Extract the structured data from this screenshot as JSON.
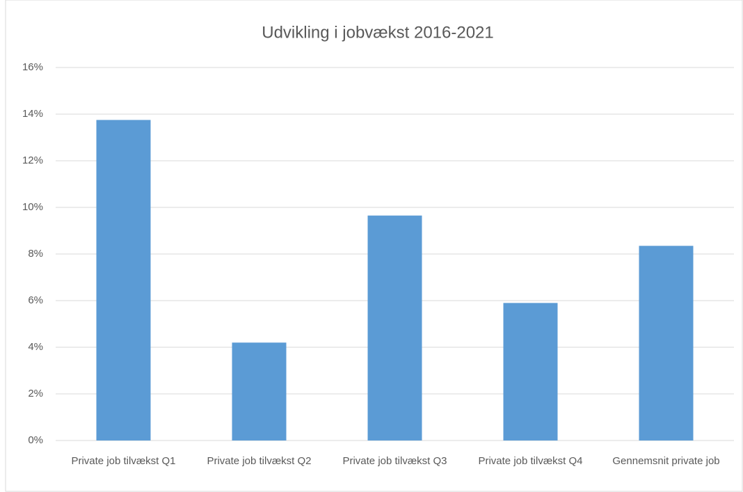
{
  "chart_data": {
    "type": "bar",
    "title": "Udvikling i jobvækst 2016-2021",
    "categories": [
      "Private job tilvækst Q1",
      "Private job tilvækst Q2",
      "Private job tilvækst Q3",
      "Private job tilvækst Q4",
      "Gennemsnit private job"
    ],
    "values": [
      13.75,
      4.2,
      9.65,
      5.9,
      8.35
    ],
    "color": "#5b9bd5",
    "ylim": [
      0,
      16
    ],
    "yticks": [
      {
        "value": 0,
        "label": "0%"
      },
      {
        "value": 2,
        "label": "2%"
      },
      {
        "value": 4,
        "label": "4%"
      },
      {
        "value": 6,
        "label": "6%"
      },
      {
        "value": 8,
        "label": "8%"
      },
      {
        "value": 10,
        "label": "10%"
      },
      {
        "value": 12,
        "label": "12%"
      },
      {
        "value": 14,
        "label": "14%"
      },
      {
        "value": 16,
        "label": "16%"
      }
    ],
    "grid": true
  }
}
